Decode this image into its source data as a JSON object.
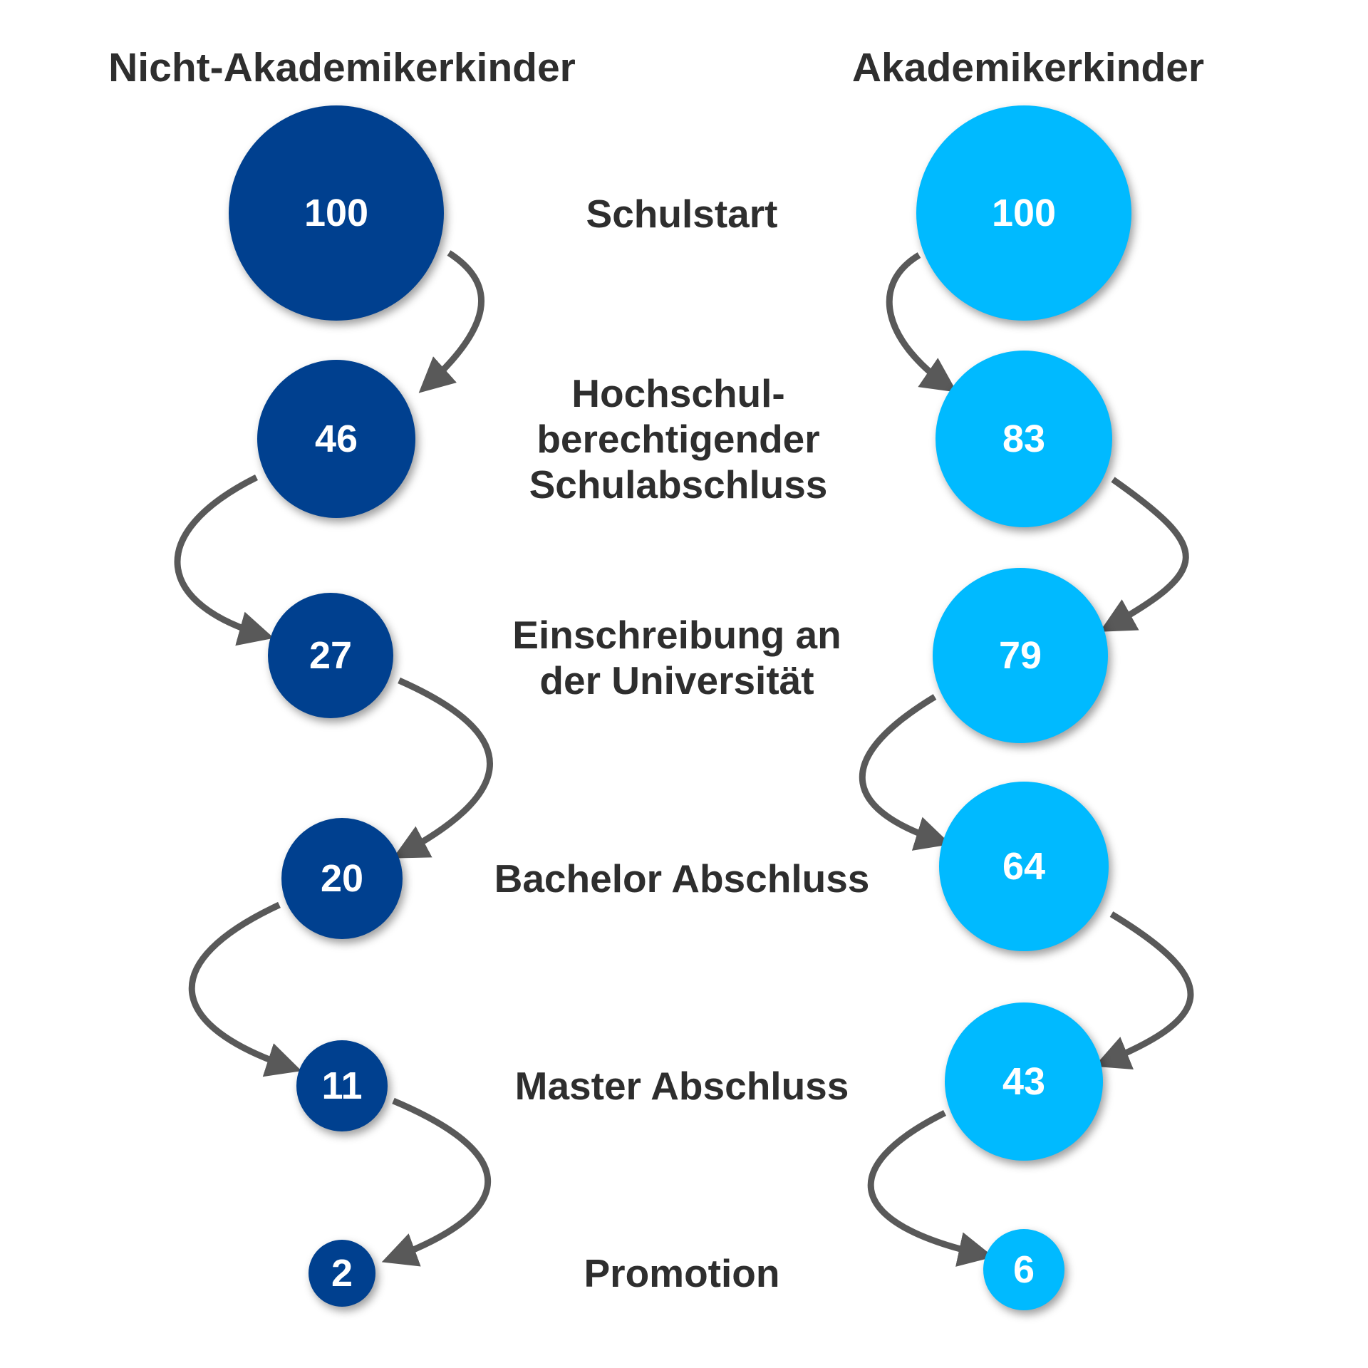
{
  "columns": {
    "left": {
      "title": "Nicht-Akademikerkinder",
      "values": [
        "100",
        "46",
        "27",
        "20",
        "11",
        "2"
      ],
      "color": "#00408f"
    },
    "right": {
      "title": "Akademikerkinder",
      "values": [
        "100",
        "83",
        "79",
        "64",
        "43",
        "6"
      ],
      "color": "#00baff"
    }
  },
  "stages": [
    {
      "label": "Schulstart"
    },
    {
      "label": "Hochschul- berechtigender Schulabschluss"
    },
    {
      "label": "Einschreibung an der Universität"
    },
    {
      "label": "Bachelor Abschluss"
    },
    {
      "label": "Master Abschluss"
    },
    {
      "label": "Promotion"
    }
  ],
  "arrow_color": "#595959",
  "text_color": "#2e2e2e"
}
